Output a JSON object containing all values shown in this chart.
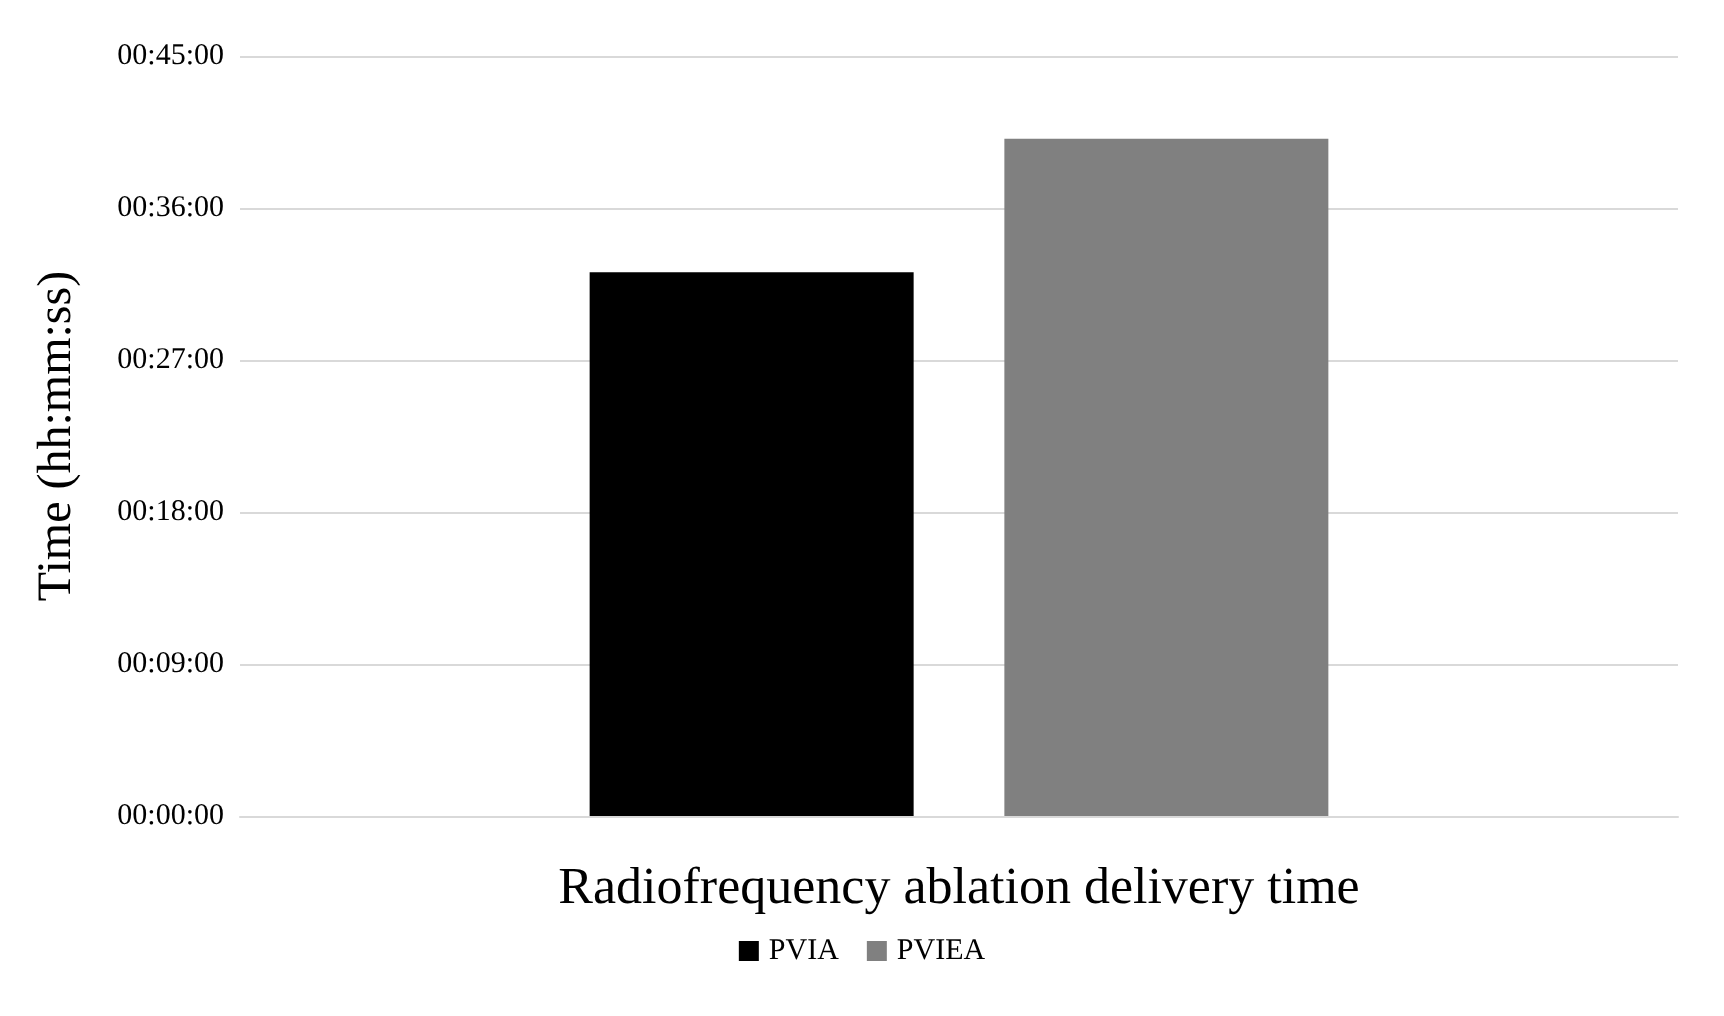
{
  "chart_data": {
    "type": "bar",
    "ylabel": "Time (hh:mm:ss)",
    "categories": [
      "Radiofrequency ablation delivery time"
    ],
    "series": [
      {
        "name": "PVIA",
        "color": "#000000",
        "values": [
          32.2
        ]
      },
      {
        "name": "PVIEA",
        "color": "#808080",
        "values": [
          40.1
        ]
      }
    ],
    "ylim": [
      0,
      45
    ],
    "yticks": [
      {
        "value": 0,
        "label": "00:00:00"
      },
      {
        "value": 9,
        "label": "00:09:00"
      },
      {
        "value": 18,
        "label": "00:18:00"
      },
      {
        "value": 27,
        "label": "00:27:00"
      },
      {
        "value": 36,
        "label": "00:36:00"
      },
      {
        "value": 45,
        "label": "00:45:00"
      }
    ],
    "grid": "y",
    "legend": "bottom"
  }
}
